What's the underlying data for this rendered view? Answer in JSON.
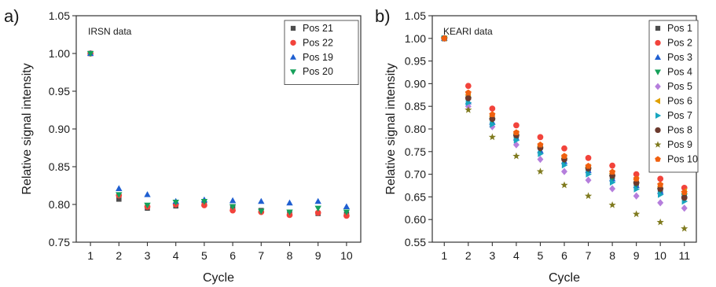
{
  "chart_data": [
    {
      "panel_label": "a)",
      "type": "scatter",
      "annotation": "IRSN data",
      "xlabel": "Cycle",
      "ylabel": "Relative signal intensity",
      "xlim": [
        0.5,
        10.5
      ],
      "ylim": [
        0.75,
        1.05
      ],
      "x_ticks": [
        1,
        2,
        3,
        4,
        5,
        6,
        7,
        8,
        9,
        10
      ],
      "y_ticks": [
        "0.75",
        "0.80",
        "0.85",
        "0.90",
        "0.95",
        "1.00",
        "1.05"
      ],
      "grid": false,
      "legend": "top-right",
      "x": [
        1,
        2,
        3,
        4,
        5,
        6,
        7,
        8,
        9,
        10
      ],
      "series": [
        {
          "name": "Pos 21",
          "color": "#4d4d4d",
          "marker": "square",
          "values": [
            1.0,
            0.807,
            0.795,
            0.798,
            0.801,
            0.797,
            0.792,
            0.789,
            0.788,
            0.787
          ]
        },
        {
          "name": "Pos 22",
          "color": "#f2433b",
          "marker": "circle",
          "values": [
            1.0,
            0.812,
            0.797,
            0.8,
            0.799,
            0.792,
            0.79,
            0.786,
            0.789,
            0.785
          ]
        },
        {
          "name": "Pos 19",
          "color": "#1f5fd1",
          "marker": "triangle-up",
          "values": [
            1.0,
            0.821,
            0.813,
            0.804,
            0.806,
            0.805,
            0.804,
            0.802,
            0.804,
            0.797
          ]
        },
        {
          "name": "Pos 20",
          "color": "#15a05a",
          "marker": "triangle-down",
          "values": [
            1.0,
            0.813,
            0.799,
            0.803,
            0.804,
            0.797,
            0.791,
            0.79,
            0.795,
            0.79
          ]
        }
      ]
    },
    {
      "panel_label": "b)",
      "type": "scatter",
      "annotation": "KEARI data",
      "xlabel": "Cycle",
      "ylabel": "Relative signal intensity",
      "xlim": [
        0.5,
        11.5
      ],
      "ylim": [
        0.55,
        1.05
      ],
      "x_ticks": [
        1,
        2,
        3,
        4,
        5,
        6,
        7,
        8,
        9,
        10,
        11
      ],
      "y_ticks": [
        "0.55",
        "0.60",
        "0.65",
        "0.70",
        "0.75",
        "0.80",
        "0.85",
        "0.90",
        "0.95",
        "1.00",
        "1.05"
      ],
      "grid": false,
      "legend": "top-right",
      "x": [
        1,
        2,
        3,
        4,
        5,
        6,
        7,
        8,
        9,
        10,
        11
      ],
      "series": [
        {
          "name": "Pos 1",
          "color": "#4d4d4d",
          "marker": "square",
          "values": [
            1.0,
            0.87,
            0.825,
            0.785,
            0.76,
            0.735,
            0.712,
            0.695,
            0.68,
            0.665,
            0.65
          ]
        },
        {
          "name": "Pos 2",
          "color": "#f2433b",
          "marker": "circle",
          "values": [
            1.0,
            0.895,
            0.845,
            0.808,
            0.782,
            0.757,
            0.736,
            0.719,
            0.7,
            0.69,
            0.67
          ]
        },
        {
          "name": "Pos 3",
          "color": "#1f5fd1",
          "marker": "triangle-up",
          "values": [
            1.0,
            0.86,
            0.815,
            0.78,
            0.752,
            0.728,
            0.708,
            0.69,
            0.675,
            0.662,
            0.655
          ]
        },
        {
          "name": "Pos 4",
          "color": "#15a05a",
          "marker": "triangle-down",
          "values": [
            1.0,
            0.865,
            0.818,
            0.782,
            0.755,
            0.73,
            0.71,
            0.692,
            0.677,
            0.664,
            0.652
          ]
        },
        {
          "name": "Pos 5",
          "color": "#b57edc",
          "marker": "diamond",
          "values": [
            1.0,
            0.85,
            0.805,
            0.765,
            0.733,
            0.706,
            0.687,
            0.668,
            0.652,
            0.637,
            0.625
          ]
        },
        {
          "name": "Pos 6",
          "color": "#e0a000",
          "marker": "triangle-left",
          "values": [
            1.0,
            0.875,
            0.828,
            0.79,
            0.762,
            0.738,
            0.716,
            0.702,
            0.688,
            0.673,
            0.662
          ]
        },
        {
          "name": "Pos 7",
          "color": "#18a6bf",
          "marker": "triangle-right",
          "values": [
            1.0,
            0.858,
            0.81,
            0.775,
            0.745,
            0.72,
            0.7,
            0.682,
            0.667,
            0.655,
            0.64
          ]
        },
        {
          "name": "Pos 8",
          "color": "#6b3a2e",
          "marker": "circle",
          "values": [
            1.0,
            0.868,
            0.822,
            0.786,
            0.758,
            0.733,
            0.713,
            0.697,
            0.681,
            0.668,
            0.648
          ]
        },
        {
          "name": "Pos 9",
          "color": "#7f7a1e",
          "marker": "star",
          "values": [
            1.0,
            0.842,
            0.782,
            0.74,
            0.706,
            0.676,
            0.652,
            0.632,
            0.612,
            0.594,
            0.58
          ]
        },
        {
          "name": "Pos 10",
          "color": "#f0600f",
          "marker": "pentagon",
          "values": [
            1.0,
            0.88,
            0.832,
            0.792,
            0.765,
            0.74,
            0.718,
            0.705,
            0.69,
            0.677,
            0.66
          ]
        }
      ]
    }
  ]
}
